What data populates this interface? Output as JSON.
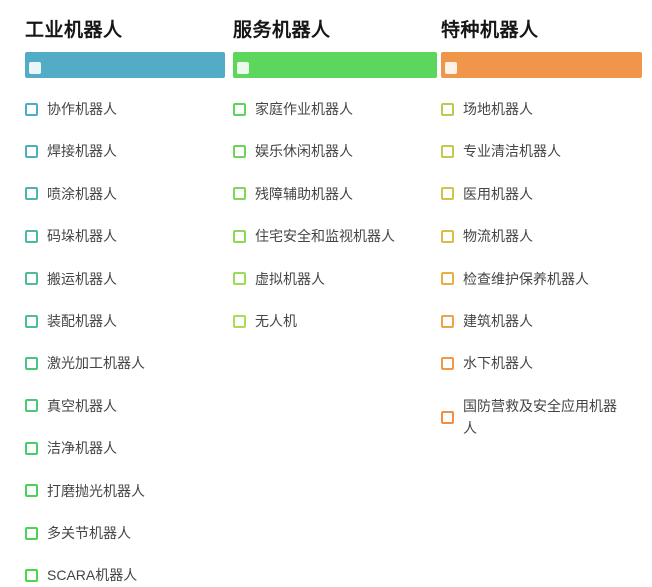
{
  "page": {
    "background": "#ffffff",
    "title_color": "#161616",
    "item_text_color": "#454545"
  },
  "columns": [
    {
      "title": "工业机器人",
      "bar_color": "#53ACC5",
      "bar_checkbox_icon": "white-square-checkbox",
      "items": [
        {
          "label": "协作机器人",
          "color": "#4FACC6"
        },
        {
          "label": "焊接机器人",
          "color": "#4EB0BA"
        },
        {
          "label": "喷涂机器人",
          "color": "#4EB4AF"
        },
        {
          "label": "码垛机器人",
          "color": "#4DB8A3"
        },
        {
          "label": "搬运机器人",
          "color": "#4DBC98"
        },
        {
          "label": "装配机器人",
          "color": "#4CC08C"
        },
        {
          "label": "激光加工机器人",
          "color": "#4CC481"
        },
        {
          "label": "真空机器人",
          "color": "#4BC875"
        },
        {
          "label": "洁净机器人",
          "color": "#4BCC6A"
        },
        {
          "label": "打磨抛光机器人",
          "color": "#4AD05E"
        },
        {
          "label": "多关节机器人",
          "color": "#4AD453"
        },
        {
          "label": "SCARA机器人",
          "color": "#49D847"
        }
      ]
    },
    {
      "title": "服务机器人",
      "bar_color": "#5CD65C",
      "bar_checkbox_icon": "white-square-checkbox",
      "items": [
        {
          "label": "家庭作业机器人",
          "color": "#5DD55B"
        },
        {
          "label": "娱乐休闲机器人",
          "color": "#6DD65A"
        },
        {
          "label": "残障辅助机器人",
          "color": "#7DD859"
        },
        {
          "label": "住宅安全和监视机器人",
          "color": "#8CD957"
        },
        {
          "label": "虚拟机器人",
          "color": "#9CDB56"
        },
        {
          "label": "无人机",
          "color": "#ACDC55"
        }
      ]
    },
    {
      "title": "特种机器人",
      "bar_color": "#F0964B",
      "bar_checkbox_icon": "white-square-checkbox",
      "items": [
        {
          "label": "场地机器人",
          "color": "#B5CC4E"
        },
        {
          "label": "专业清洁机器人",
          "color": "#C2C94E"
        },
        {
          "label": "医用机器人",
          "color": "#D2C24C"
        },
        {
          "label": "物流机器人",
          "color": "#DDBB49"
        },
        {
          "label": "检查维护保养机器人",
          "color": "#E7B046"
        },
        {
          "label": "建筑机器人",
          "color": "#EDA347"
        },
        {
          "label": "水下机器人",
          "color": "#F09A48"
        },
        {
          "label": "国防营救及安全应用机器人",
          "color": "#F18D45"
        }
      ]
    }
  ]
}
